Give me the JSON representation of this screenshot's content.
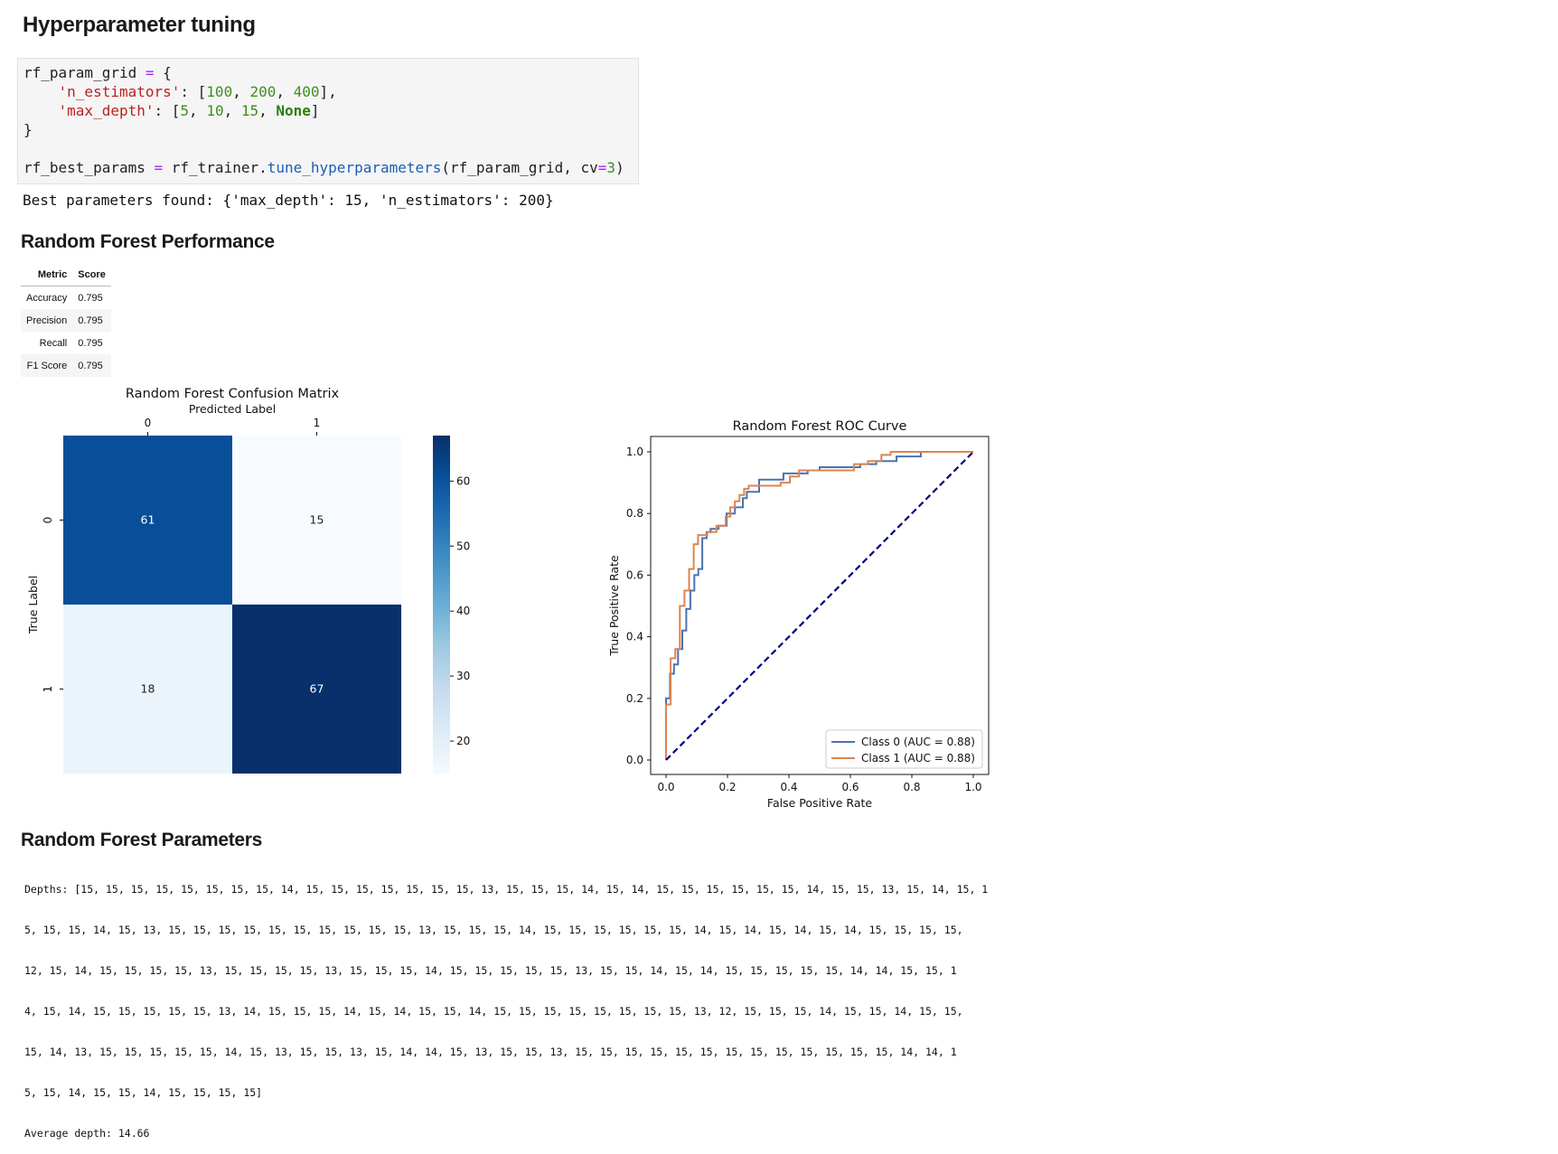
{
  "tuning": {
    "heading": "Hyperparameter tuning",
    "code": {
      "l1_var": "rf_param_grid",
      "l1_eq": " = ",
      "l1_brace": "{",
      "l2_key": "'n_estimators'",
      "l2_colon": ": [",
      "l2_v1": "100",
      "l2_v2": "200",
      "l2_v3": "400",
      "l2_end": "],",
      "l3_key": "'max_depth'",
      "l3_colon": ": [",
      "l3_v1": "5",
      "l3_v2": "10",
      "l3_v3": "15",
      "l3_v4": "None",
      "l3_end": "]",
      "l4": "}",
      "l6_var": "rf_best_params",
      "l6_eq": " = ",
      "l6_obj": "rf_trainer.",
      "l6_fn": "tune_hyperparameters",
      "l6_args": "(rf_param_grid, cv",
      "l6_eq2": "=",
      "l6_num": "3",
      "l6_close": ")"
    },
    "output": "Best parameters found: {'max_depth': 15, 'n_estimators': 200}"
  },
  "performance": {
    "heading": "Random Forest Performance",
    "table": {
      "headers": [
        "Metric",
        "Score"
      ],
      "rows": [
        {
          "metric": "Accuracy",
          "score": "0.795"
        },
        {
          "metric": "Precision",
          "score": "0.795"
        },
        {
          "metric": "Recall",
          "score": "0.795"
        },
        {
          "metric": "F1 Score",
          "score": "0.795"
        }
      ]
    }
  },
  "chart_data": [
    {
      "type": "heatmap",
      "title": "Random Forest Confusion Matrix",
      "xlabel": "Predicted Label",
      "ylabel": "True Label",
      "x_ticks": [
        "0",
        "1"
      ],
      "y_ticks": [
        "0",
        "1"
      ],
      "matrix": [
        [
          61,
          15
        ],
        [
          18,
          67
        ]
      ],
      "colorbar": {
        "ticks": [
          20,
          30,
          40,
          50,
          60
        ],
        "range": [
          15,
          67
        ],
        "colormap": "Blues"
      }
    },
    {
      "type": "line",
      "title": "Random Forest ROC Curve",
      "xlabel": "False Positive Rate",
      "ylabel": "True Positive Rate",
      "xlim": [
        0.0,
        1.0
      ],
      "ylim": [
        0.0,
        1.0
      ],
      "x_ticks": [
        "0.0",
        "0.2",
        "0.4",
        "0.6",
        "0.8",
        "1.0"
      ],
      "y_ticks": [
        "0.0",
        "0.2",
        "0.4",
        "0.6",
        "0.8",
        "1.0"
      ],
      "legend_position": "lower-right",
      "series": [
        {
          "name": "Class 0 (AUC = 0.88)",
          "color": "#4c72b0",
          "x": [
            0,
            0,
            0.013,
            0.013,
            0.026,
            0.026,
            0.039,
            0.039,
            0.053,
            0.053,
            0.066,
            0.066,
            0.079,
            0.079,
            0.092,
            0.092,
            0.105,
            0.105,
            0.118,
            0.118,
            0.132,
            0.132,
            0.145,
            0.145,
            0.171,
            0.171,
            0.197,
            0.197,
            0.224,
            0.224,
            0.25,
            0.25,
            0.263,
            0.263,
            0.303,
            0.303,
            0.382,
            0.382,
            0.461,
            0.461,
            0.5,
            0.5,
            0.632,
            0.632,
            0.684,
            0.684,
            0.75,
            0.75,
            0.829,
            0.829,
            1.0
          ],
          "y": [
            0,
            0.2,
            0.2,
            0.28,
            0.28,
            0.31,
            0.31,
            0.36,
            0.36,
            0.42,
            0.42,
            0.49,
            0.49,
            0.55,
            0.55,
            0.6,
            0.6,
            0.62,
            0.62,
            0.72,
            0.72,
            0.74,
            0.74,
            0.75,
            0.75,
            0.76,
            0.76,
            0.8,
            0.8,
            0.82,
            0.82,
            0.85,
            0.85,
            0.87,
            0.87,
            0.91,
            0.91,
            0.93,
            0.93,
            0.94,
            0.94,
            0.95,
            0.95,
            0.96,
            0.96,
            0.97,
            0.97,
            0.985,
            0.985,
            1.0,
            1.0
          ]
        },
        {
          "name": "Class 1 (AUC = 0.88)",
          "color": "#dd8452",
          "x": [
            0,
            0,
            0.015,
            0.015,
            0.03,
            0.03,
            0.045,
            0.045,
            0.06,
            0.06,
            0.075,
            0.075,
            0.09,
            0.09,
            0.104,
            0.104,
            0.134,
            0.134,
            0.164,
            0.164,
            0.194,
            0.194,
            0.209,
            0.209,
            0.224,
            0.224,
            0.239,
            0.239,
            0.254,
            0.254,
            0.269,
            0.269,
            0.373,
            0.373,
            0.403,
            0.403,
            0.433,
            0.433,
            0.612,
            0.612,
            0.657,
            0.657,
            0.701,
            0.701,
            0.731,
            0.731,
            1.0
          ],
          "y": [
            0,
            0.18,
            0.18,
            0.33,
            0.33,
            0.36,
            0.36,
            0.5,
            0.5,
            0.55,
            0.55,
            0.62,
            0.62,
            0.7,
            0.7,
            0.73,
            0.73,
            0.74,
            0.74,
            0.76,
            0.76,
            0.79,
            0.79,
            0.82,
            0.82,
            0.84,
            0.84,
            0.86,
            0.86,
            0.88,
            0.88,
            0.89,
            0.89,
            0.9,
            0.9,
            0.92,
            0.92,
            0.94,
            0.94,
            0.96,
            0.96,
            0.97,
            0.97,
            0.99,
            0.99,
            1.0,
            1.0
          ]
        },
        {
          "name": "",
          "color": "#000080",
          "style": "dashed",
          "x": [
            0,
            1
          ],
          "y": [
            0,
            1
          ]
        }
      ]
    }
  ],
  "parameters": {
    "heading": "Random Forest Parameters",
    "lines": [
      "Depths: [15, 15, 15, 15, 15, 15, 15, 15, 14, 15, 15, 15, 15, 15, 15, 15, 13, 15, 15, 15, 14, 15, 14, 15, 15, 15, 15, 15, 15, 14, 15, 15, 13, 15, 14, 15, 1",
      "5, 15, 15, 14, 15, 13, 15, 15, 15, 15, 15, 15, 15, 15, 15, 15, 13, 15, 15, 15, 14, 15, 15, 15, 15, 15, 15, 14, 15, 14, 15, 14, 15, 14, 15, 15, 15, 15,",
      "12, 15, 14, 15, 15, 15, 15, 13, 15, 15, 15, 15, 13, 15, 15, 15, 14, 15, 15, 15, 15, 15, 13, 15, 15, 14, 15, 14, 15, 15, 15, 15, 15, 14, 14, 15, 15, 1",
      "4, 15, 14, 15, 15, 15, 15, 15, 13, 14, 15, 15, 15, 14, 15, 14, 15, 15, 14, 15, 15, 15, 15, 15, 15, 15, 15, 13, 12, 15, 15, 15, 14, 15, 15, 14, 15, 15,",
      "15, 14, 13, 15, 15, 15, 15, 15, 14, 15, 13, 15, 15, 13, 15, 14, 14, 15, 13, 15, 15, 13, 15, 15, 15, 15, 15, 15, 15, 15, 15, 15, 15, 15, 15, 14, 14, 1",
      "5, 15, 14, 15, 15, 14, 15, 15, 15, 15]",
      "Average depth: 14.66"
    ]
  }
}
